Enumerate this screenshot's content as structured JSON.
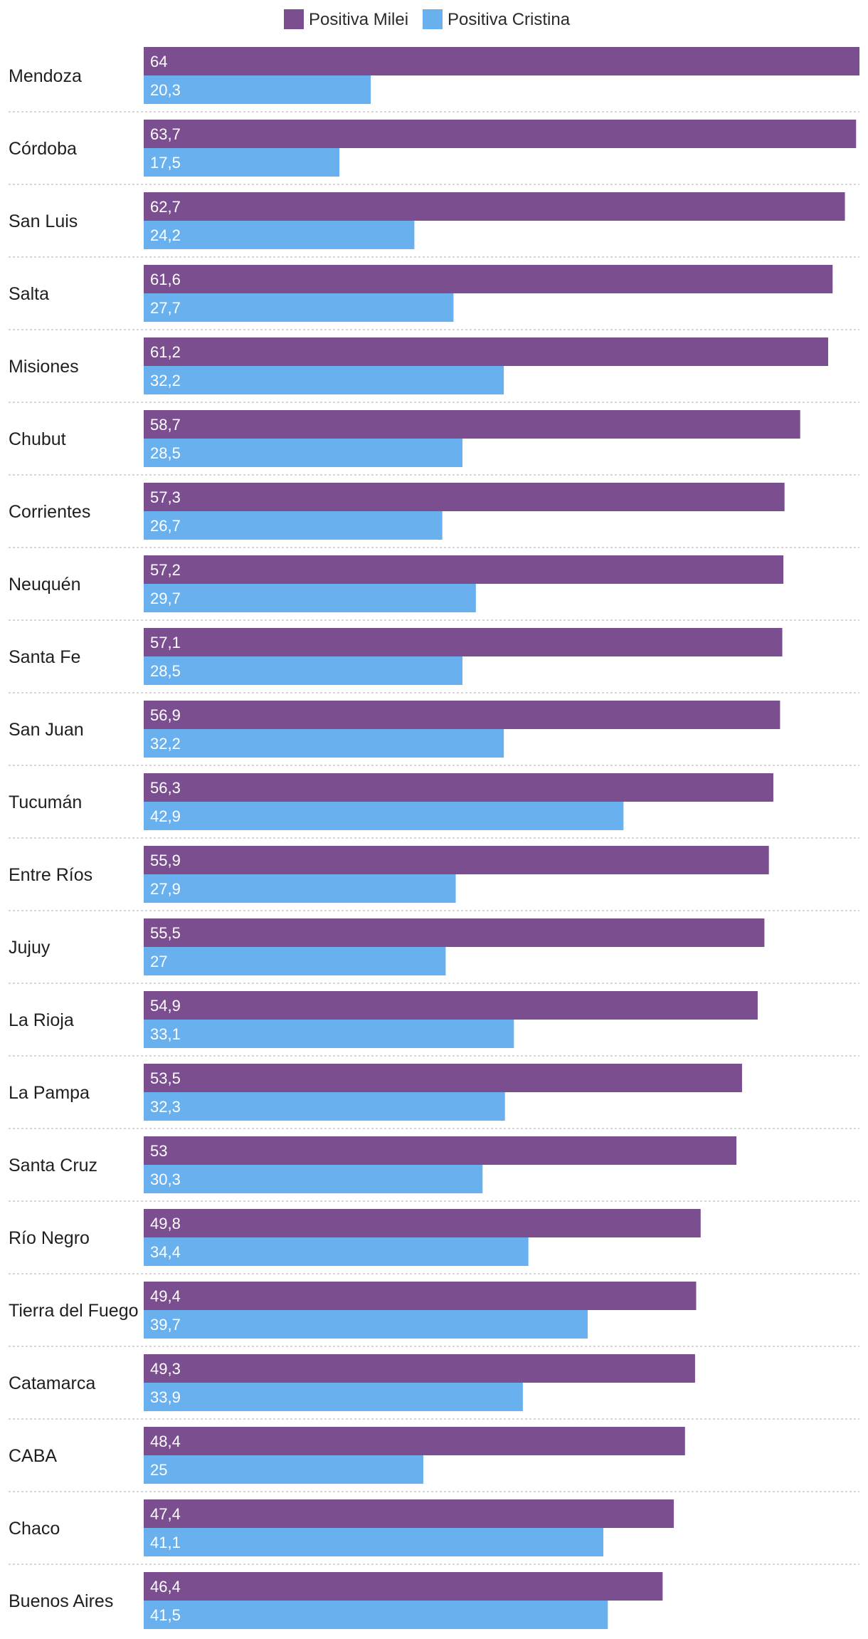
{
  "chart_data": {
    "type": "bar",
    "orientation": "horizontal",
    "title": "",
    "xlabel": "",
    "ylabel": "",
    "xlim": [
      0,
      64
    ],
    "grid": false,
    "legend_position": "top-center",
    "categories": [
      "Mendoza",
      "Córdoba",
      "San Luis",
      "Salta",
      "Misiones",
      "Chubut",
      "Corrientes",
      "Neuquén",
      "Santa Fe",
      "San Juan",
      "Tucumán",
      "Entre Ríos",
      "Jujuy",
      "La Rioja",
      "La Pampa",
      "Santa Cruz",
      "Río Negro",
      "Tierra del Fuego",
      "Catamarca",
      "CABA",
      "Chaco",
      "Buenos Aires"
    ],
    "series": [
      {
        "name": "Positiva Milei",
        "color": "#7b4f8f",
        "values": [
          64,
          63.7,
          62.7,
          61.6,
          61.2,
          58.7,
          57.3,
          57.2,
          57.1,
          56.9,
          56.3,
          55.9,
          55.5,
          54.9,
          53.5,
          53,
          49.8,
          49.4,
          49.3,
          48.4,
          47.4,
          46.4
        ],
        "value_labels": [
          "64",
          "63,7",
          "62,7",
          "61,6",
          "61,2",
          "58,7",
          "57,3",
          "57,2",
          "57,1",
          "56,9",
          "56,3",
          "55,9",
          "55,5",
          "54,9",
          "53,5",
          "53",
          "49,8",
          "49,4",
          "49,3",
          "48,4",
          "47,4",
          "46,4"
        ]
      },
      {
        "name": "Positiva Cristina",
        "color": "#69b0ef",
        "values": [
          20.3,
          17.5,
          24.2,
          27.7,
          32.2,
          28.5,
          26.7,
          29.7,
          28.5,
          32.2,
          42.9,
          27.9,
          27,
          33.1,
          32.3,
          30.3,
          34.4,
          39.7,
          33.9,
          25,
          41.1,
          41.5
        ],
        "value_labels": [
          "20,3",
          "17,5",
          "24,2",
          "27,7",
          "32,2",
          "28,5",
          "26,7",
          "29,7",
          "28,5",
          "32,2",
          "42,9",
          "27,9",
          "27",
          "33,1",
          "32,3",
          "30,3",
          "34,4",
          "39,7",
          "33,9",
          "25",
          "41,1",
          "41,5"
        ]
      }
    ]
  }
}
